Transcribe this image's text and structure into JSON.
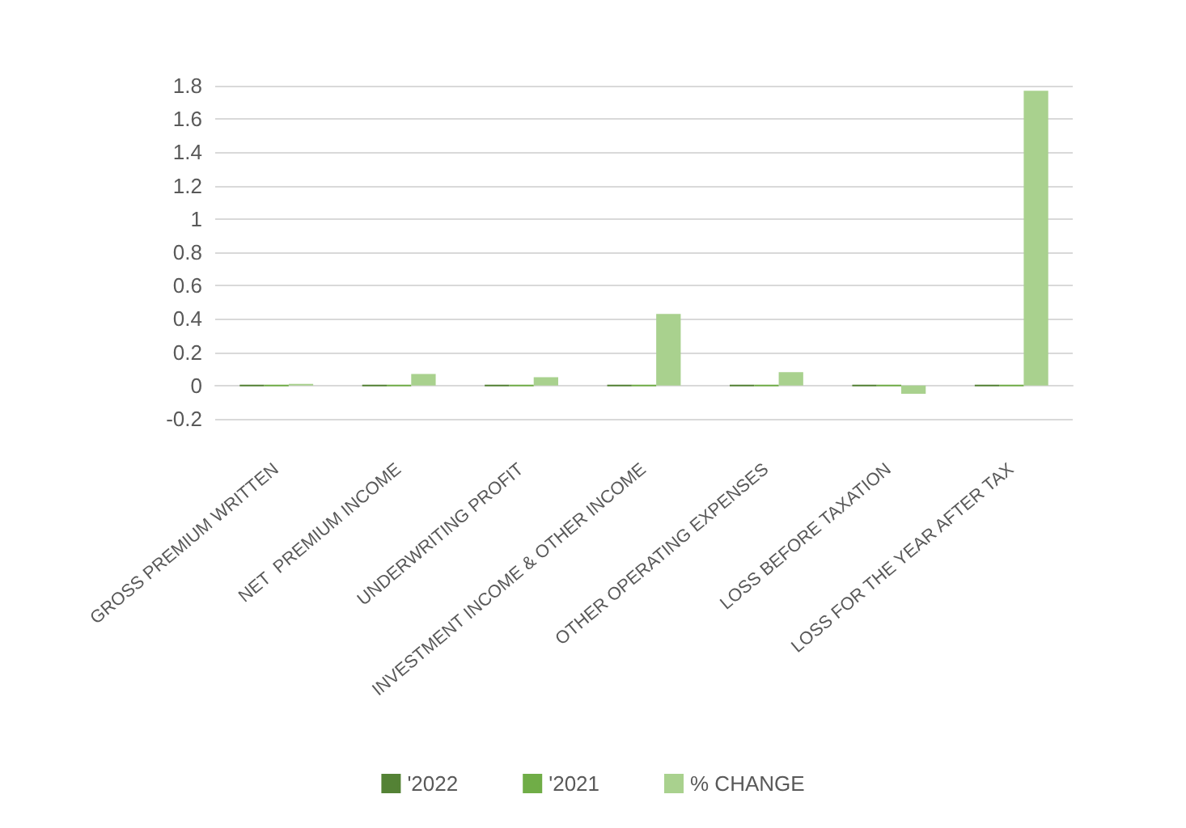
{
  "chart_data": {
    "type": "bar",
    "categories": [
      "GROSS PREMIUM WRITTEN",
      "NET  PREMIUM INCOME",
      "UNDERWRITING PROFIT",
      "INVESTMENT INCOME & OTHER INCOME",
      "OTHER OPERATING EXPENSES",
      "LOSS BEFORE TAXATION",
      "LOSS FOR THE YEAR AFTER TAX"
    ],
    "series": [
      {
        "name": "'2022",
        "color": "#548235",
        "values": [
          0,
          0,
          0,
          0,
          0,
          0,
          0
        ]
      },
      {
        "name": "'2021",
        "color": "#70ad47",
        "values": [
          0,
          0,
          0,
          0,
          0,
          0,
          0
        ]
      },
      {
        "name": "% CHANGE",
        "color": "#a9d18e",
        "values": [
          0.01,
          0.07,
          0.05,
          0.43,
          0.08,
          -0.05,
          1.77
        ]
      }
    ],
    "ylim": [
      -0.2,
      1.8
    ],
    "yticks": [
      -0.2,
      0,
      0.2,
      0.4,
      0.6,
      0.8,
      1,
      1.2,
      1.4,
      1.6,
      1.8
    ],
    "grid": "y",
    "legend": "bottom"
  }
}
